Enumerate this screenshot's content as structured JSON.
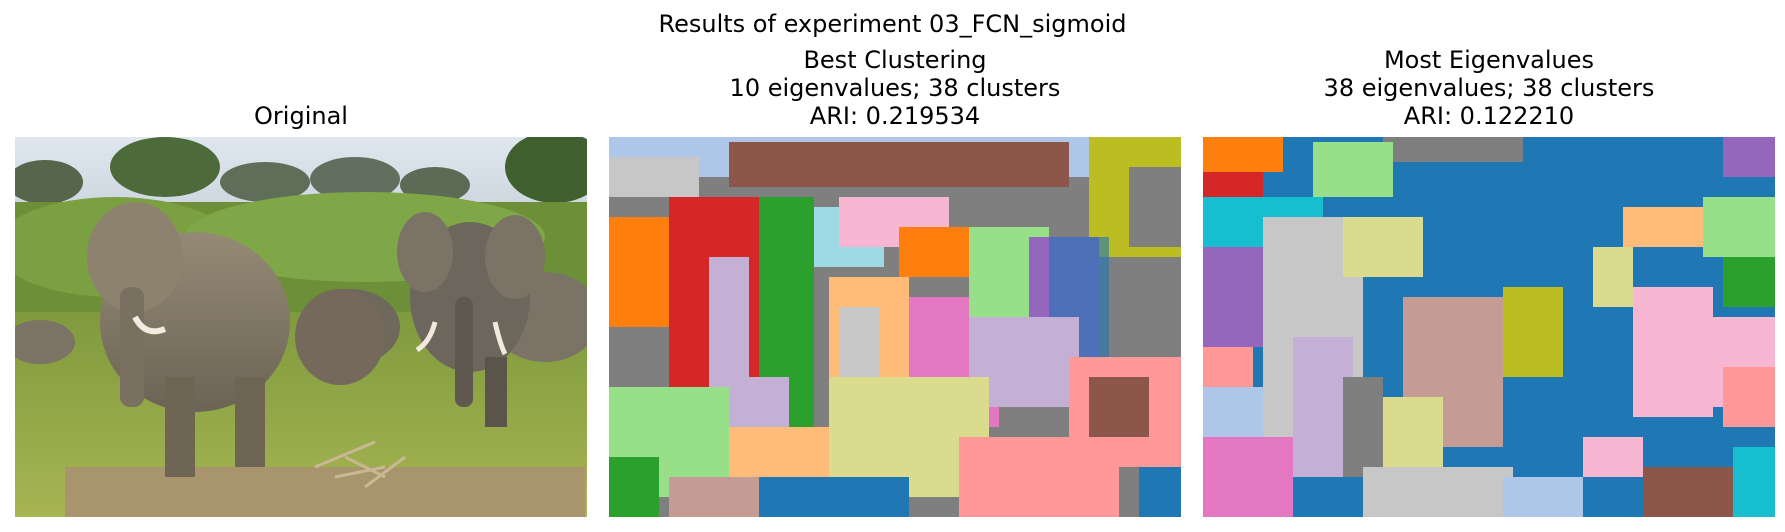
{
  "figure": {
    "suptitle": "Results of experiment 03_FCN_sigmoid"
  },
  "panels": [
    {
      "title_lines": [
        "Original"
      ],
      "image": "photo of African elephants in grassland"
    },
    {
      "title_lines": [
        "Best Clustering",
        "10 eigenvalues; 38 clusters",
        "ARI: 0.219534"
      ],
      "image": "segmentation map of the elephant photo"
    },
    {
      "title_lines": [
        "Most Eigenvalues",
        "38 eigenvalues; 38 clusters",
        "ARI: 0.122210"
      ],
      "image": "segmentation map of the elephant photo"
    }
  ],
  "palette": {
    "blue": "#1f77b4",
    "light_blue": "#aec7e8",
    "orange": "#ff7f0e",
    "light_orange": "#ffbb78",
    "green": "#2ca02c",
    "light_green": "#98df8a",
    "red": "#d62728",
    "pink_red": "#ff9896",
    "purple": "#9467bd",
    "lavender": "#c5b0d5",
    "brown": "#8c564b",
    "tan": "#c49c94",
    "magenta": "#e377c2",
    "pink": "#f7b6d2",
    "gray": "#7f7f7f",
    "light_gray": "#c7c7c7",
    "olive": "#bcbd22",
    "khaki": "#dbdb8d",
    "cyan": "#17becf",
    "light_cyan": "#9edae5"
  }
}
